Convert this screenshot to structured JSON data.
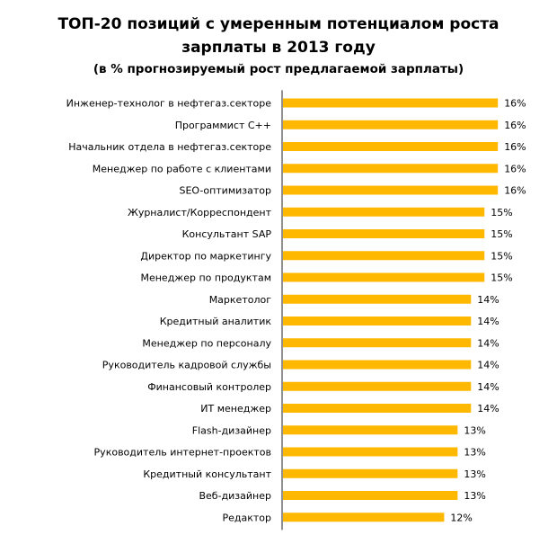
{
  "chart_data": {
    "type": "bar",
    "orientation": "horizontal",
    "title_line1": "ТОП-20 позиций с умеренным потенциалом роста",
    "title_line2": "зарплаты в 2013 году",
    "subtitle": "(в % прогнозируемый рост предлагаемой зарплаты)",
    "bar_color": "#FFB800",
    "categories": [
      "Инженер-технолог в нефтегаз.секторе",
      "Программист С++",
      "Начальник отдела в нефтегаз.секторе",
      "Менеджер по работе с клиентами",
      "SEO-оптимизатор",
      "Журналист/Корреспондент",
      "Консультант SAP",
      "Директор по маркетингу",
      "Менеджер по продуктам",
      "Маркетолог",
      "Кредитный аналитик",
      "Менеджер по персоналу",
      "Руководитель кадровой службы",
      "Финансовый контролер",
      "ИТ менеджер",
      "Flash-дизайнер",
      "Руководитель интернет-проектов",
      "Кредитный консультант",
      "Веб-дизайнер",
      "Редактор"
    ],
    "values": [
      16,
      16,
      16,
      16,
      16,
      15,
      15,
      15,
      15,
      14,
      14,
      14,
      14,
      14,
      14,
      13,
      13,
      13,
      13,
      12
    ],
    "data_labels": [
      "16%",
      "16%",
      "16%",
      "16%",
      "16%",
      "15%",
      "15%",
      "15%",
      "15%",
      "14%",
      "14%",
      "14%",
      "14%",
      "14%",
      "14%",
      "13%",
      "13%",
      "13%",
      "13%",
      "12%"
    ],
    "grid": false,
    "legend": "none"
  }
}
